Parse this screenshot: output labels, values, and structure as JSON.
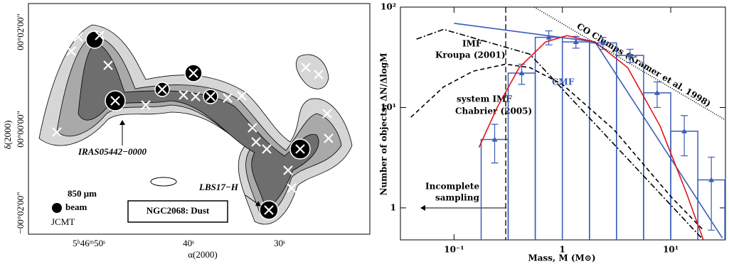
{
  "map": {
    "x_ticks": [
      "5ʰ46ᵐ50ˢ",
      "40ˢ",
      "30ˢ"
    ],
    "y_ticks": [
      "00°02'00\"",
      "00°00'00\"",
      "−00°02'00\""
    ],
    "xlabel": "α(2000)",
    "ylabel": "δ(2000)",
    "source_label": "IRAS05442−0000",
    "source_label_2": "LBS17−H",
    "wavelength": "850 μm",
    "beam": "beam",
    "telescope": "JCMT",
    "title": "NGC2068: Dust"
  },
  "chart_data": {
    "type": "histogram",
    "xlabel": "Mass, M (M⊙)",
    "ylabel": "Number of objects: ΔN/ΔlogM",
    "log_x": true,
    "log_y": true,
    "xlim": [
      0.032,
      32
    ],
    "ylim": [
      0.48,
      100
    ],
    "xticks": [
      {
        "value": 0.1,
        "label": "10⁻¹"
      },
      1,
      {
        "value": 10,
        "label": "10¹"
      }
    ],
    "yticks": [
      1,
      {
        "value": 10,
        "label": "10¹"
      },
      {
        "value": 100,
        "label": "10²"
      }
    ],
    "color": "#3b5db8",
    "bins": [
      0.178,
      0.316,
      0.562,
      1,
      1.78,
      3.16,
      5.62,
      10,
      17.8,
      31.6
    ],
    "counts": [
      4.8,
      22,
      50,
      45,
      44,
      33,
      14,
      5.8,
      1.9
    ],
    "errors": [
      2,
      5,
      8,
      6,
      6,
      5,
      4,
      2.5,
      1.3
    ],
    "completeness_limit": 0.3,
    "series": [
      {
        "color": "#000000",
        "dash": "8 3 2 3",
        "x": [
          0.045,
          0.08,
          0.5,
          20
        ],
        "y": [
          48,
          60,
          34,
          0.48
        ]
      },
      {
        "color": "#000000",
        "dash": "6 4",
        "x": [
          0.04,
          0.08,
          0.15,
          0.3,
          0.5,
          1,
          3,
          10,
          20
        ],
        "y": [
          8,
          16,
          23,
          27,
          25,
          17,
          6,
          1.3,
          0.6
        ]
      },
      {
        "color": "#3b5db8",
        "dash": "none",
        "x": [
          0.1,
          2,
          30
        ],
        "y": [
          69,
          45,
          0.5
        ]
      },
      {
        "color": "#e0141e",
        "dash": "none",
        "x": [
          0.17,
          0.25,
          0.4,
          0.7,
          1.1,
          2,
          4,
          8,
          14,
          20
        ],
        "y": [
          4,
          10,
          25,
          45,
          52,
          45,
          25,
          6.5,
          1.4,
          0.48
        ]
      },
      {
        "color": "#000000",
        "dash": "1 2",
        "x": [
          0.55,
          32
        ],
        "y": [
          100,
          7.5
        ]
      }
    ],
    "annotations": [
      "IMF",
      "Kroupa (2001)",
      "system IMF",
      "Chabrier (2005)",
      "CMF",
      "Incomplete",
      "sampling",
      "CO Clumps (Kramer et al. 1998)"
    ]
  }
}
